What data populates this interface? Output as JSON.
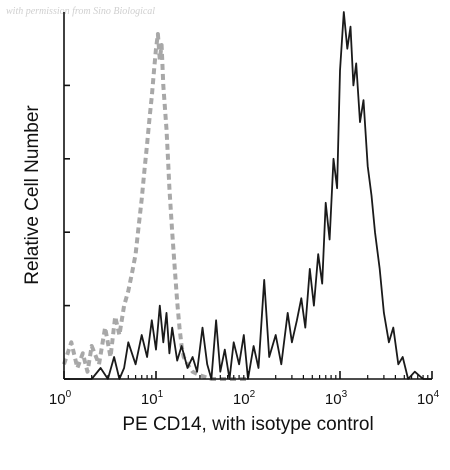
{
  "watermark": "with permission from Sino Biological",
  "chart_data": {
    "type": "histogram",
    "xlabel": "PE CD14, with isotype control",
    "ylabel": "Relative Cell Number",
    "x_scale": "log",
    "xlim": [
      1,
      10000
    ],
    "ylim": [
      0,
      100
    ],
    "x_ticks": [
      {
        "value": 1,
        "base": "10",
        "exp": "0"
      },
      {
        "value": 10,
        "base": "10",
        "exp": "1"
      },
      {
        "value": 100,
        "base": "10",
        "exp": "2"
      },
      {
        "value": 1000,
        "base": "10",
        "exp": "3"
      },
      {
        "value": 10000,
        "base": "10",
        "exp": "4"
      }
    ],
    "y_ticks": [
      0,
      20,
      40,
      60,
      80
    ],
    "series": [
      {
        "style": "dashed",
        "color": "#a8a8a8",
        "x": [
          1.0,
          1.2,
          1.4,
          1.6,
          1.8,
          2.0,
          2.4,
          2.8,
          3.2,
          3.6,
          4.0,
          4.5,
          5.0,
          5.5,
          6.0,
          6.5,
          7.0,
          7.5,
          8.0,
          8.5,
          9.0,
          9.5,
          10.0,
          10.5,
          11.0,
          11.5,
          12.0,
          12.5,
          13.0,
          13.5,
          14.0,
          15.0,
          16.0,
          17.0,
          18.0,
          19.0,
          20.0,
          22.0,
          25.0,
          30.0,
          40.0,
          60.0,
          100.0
        ],
        "y": [
          4,
          10,
          3,
          7,
          2,
          9,
          4,
          14,
          6,
          17,
          12,
          20,
          24,
          29,
          34,
          42,
          49,
          57,
          64,
          71,
          77,
          84,
          90,
          94,
          87,
          91,
          80,
          74,
          68,
          60,
          52,
          40,
          30,
          21,
          14,
          9,
          6,
          4,
          2,
          1,
          0,
          0,
          0
        ]
      },
      {
        "style": "solid",
        "color": "#1a1a1a",
        "x": [
          1.0,
          1.5,
          2.0,
          2.5,
          3.0,
          3.5,
          4.0,
          4.5,
          5.0,
          6.0,
          7.0,
          8.0,
          9.0,
          10.0,
          11.0,
          12.0,
          13.0,
          14.0,
          15.0,
          17.0,
          19.0,
          22.0,
          25.0,
          28.0,
          32.0,
          36.0,
          40.0,
          45.0,
          50.0,
          56.0,
          63.0,
          70.0,
          80.0,
          90.0,
          100.0,
          115.0,
          130.0,
          150.0,
          170.0,
          200.0,
          230.0,
          270.0,
          300.0,
          340.0,
          380.0,
          420.0,
          470.0,
          520.0,
          580.0,
          640.0,
          700.0,
          770.0,
          850.0,
          930.0,
          1000.0,
          1100.0,
          1200.0,
          1300.0,
          1400.0,
          1500.0,
          1650.0,
          1800.0,
          2000.0,
          2200.0,
          2400.0,
          2700.0,
          3000.0,
          3400.0,
          3800.0,
          4300.0,
          4800.0,
          5500.0,
          6500.0,
          8000.0,
          10000.0
        ],
        "y": [
          0,
          0,
          0,
          3,
          0,
          6,
          0,
          3,
          10,
          4,
          12,
          6,
          16,
          8,
          20,
          10,
          18,
          7,
          14,
          5,
          9,
          3,
          6,
          2,
          14,
          4,
          0,
          16,
          2,
          8,
          0,
          10,
          4,
          12,
          0,
          9,
          3,
          27,
          6,
          12,
          4,
          18,
          10,
          16,
          22,
          14,
          30,
          20,
          34,
          26,
          48,
          38,
          60,
          52,
          84,
          100,
          90,
          96,
          80,
          86,
          70,
          76,
          58,
          50,
          40,
          30,
          18,
          10,
          14,
          4,
          6,
          0,
          2,
          0,
          0
        ]
      }
    ]
  }
}
